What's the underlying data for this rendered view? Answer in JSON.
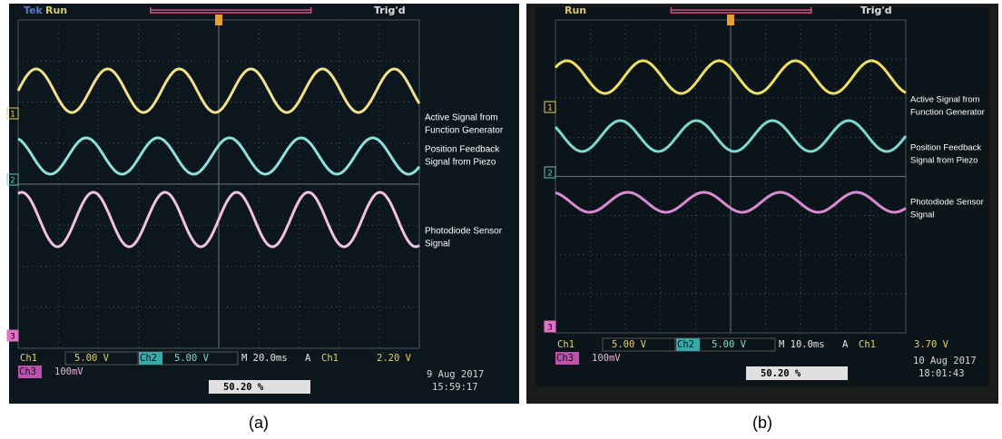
{
  "panels": [
    {
      "caption": "(a)",
      "brand": "Tek",
      "status": "Run",
      "trigger": "Trig'd",
      "markers": [
        "1",
        "2",
        "3"
      ],
      "annotations": [
        [
          "Active Signal from",
          "Function Generator"
        ],
        [
          "Position Feedback",
          "Signal from Piezo"
        ],
        [
          "Photodiode Sensor",
          "Signal"
        ]
      ],
      "readout": {
        "ch1": "Ch1",
        "ch1_scale": "5.00 V",
        "ch2": "Ch2",
        "ch2_scale": "5.00 V",
        "timebase": "M 20.0ms",
        "trig_mode": "A",
        "trig_source": "Ch1",
        "trig_level": "2.20 V",
        "ch3": "Ch3",
        "ch3_scale": "100mV",
        "position": "50.20 %",
        "date": "9 Aug 2017",
        "time": "15:59:17"
      }
    },
    {
      "caption": "(b)",
      "status": "Run",
      "trigger": "Trig'd",
      "markers": [
        "1",
        "2",
        "3"
      ],
      "annotations": [
        [
          "Active Signal from",
          "Function Generator"
        ],
        [
          "Position Feedback",
          "Signal from Piezo"
        ],
        [
          "Photodiode Sensor",
          "Signal"
        ]
      ],
      "readout": {
        "ch1": "Ch1",
        "ch1_scale": "5.00 V",
        "ch2": "Ch2",
        "ch2_scale": "5.00 V",
        "timebase": "M 10.0ms",
        "trig_mode": "A",
        "trig_source": "Ch1",
        "trig_level": "3.70 V",
        "ch3": "Ch3",
        "ch3_scale": "100mV",
        "position": "50.20 %",
        "date": "10 Aug 2017",
        "time": "18:01:43"
      }
    }
  ]
}
